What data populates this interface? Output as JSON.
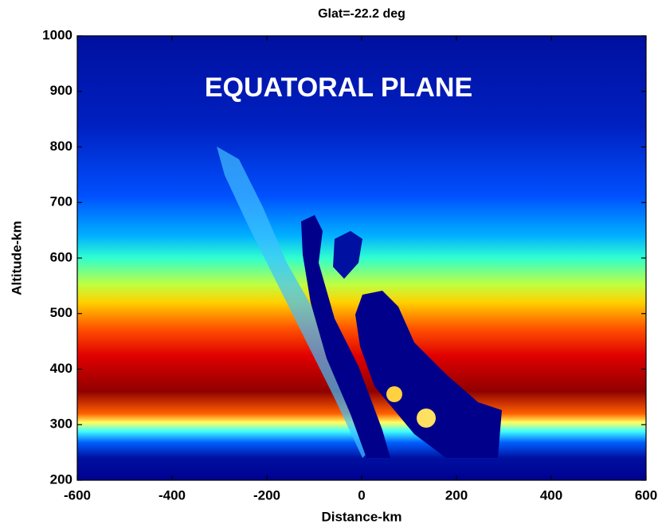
{
  "chart_data": {
    "type": "heatmap",
    "title": "Glat=-22.2 deg",
    "annotation": "EQUATORAL PLANE",
    "xlabel": "Distance-km",
    "ylabel": "Altitude-km",
    "xlim": [
      -600,
      600
    ],
    "xticks": [
      -600,
      -400,
      -200,
      0,
      200,
      400,
      600
    ],
    "ylim": [
      200,
      1000
    ],
    "yticks": [
      200,
      300,
      400,
      500,
      600,
      700,
      800,
      900,
      1000
    ]
  }
}
